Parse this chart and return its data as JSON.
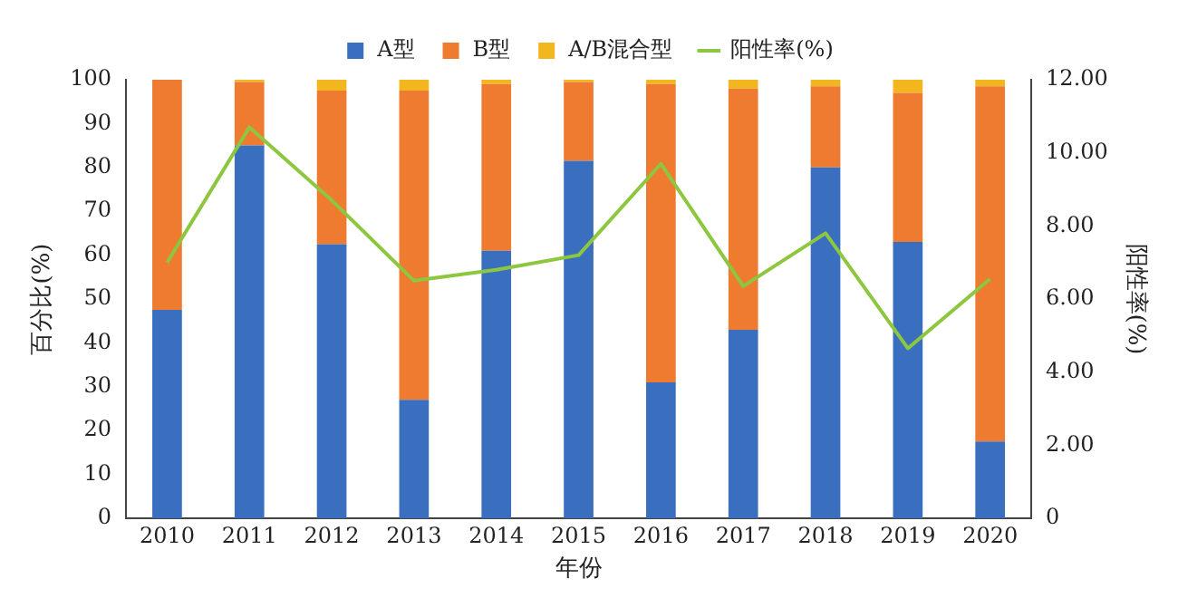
{
  "chart_data": {
    "type": "bar",
    "stacked": true,
    "xlabel": "年份",
    "ylabel": "百分比(%)",
    "y2label": "阳性率(%)",
    "categories": [
      "2010",
      "2011",
      "2012",
      "2013",
      "2014",
      "2015",
      "2016",
      "2017",
      "2018",
      "2019",
      "2020"
    ],
    "series": [
      {
        "name": "A型",
        "color": "#3a6fbf",
        "values": [
          47.5,
          85,
          62.5,
          27,
          61,
          81.5,
          31,
          43,
          80,
          63,
          17.5
        ]
      },
      {
        "name": "B型",
        "color": "#ee7b30",
        "values": [
          52.5,
          14.5,
          35,
          70.5,
          38,
          18,
          68,
          55,
          18.5,
          34,
          81
        ]
      },
      {
        "name": "A/B混合型",
        "color": "#f2b61f",
        "values": [
          0,
          0.5,
          2.5,
          2.5,
          1,
          0.5,
          1,
          2,
          1.5,
          3,
          1.5
        ]
      },
      {
        "name": "阳性率(%)",
        "type": "line",
        "axis": "y2",
        "color": "#8dc63f",
        "marker": "none",
        "values": [
          7.0,
          10.7,
          8.7,
          6.5,
          6.8,
          7.2,
          9.7,
          6.35,
          7.8,
          4.65,
          6.55
        ]
      }
    ],
    "ylim": [
      0,
      100
    ],
    "yticks": [
      0,
      10,
      20,
      30,
      40,
      50,
      60,
      70,
      80,
      90,
      100
    ],
    "y2lim": [
      0,
      12
    ],
    "y2ticks": [
      0,
      {
        "value": 2,
        "label": "2.00"
      },
      {
        "value": 4,
        "label": "4.00"
      },
      {
        "value": 6,
        "label": "6.00"
      },
      {
        "value": 8,
        "label": "8.00"
      },
      {
        "value": 10,
        "label": "10.00"
      },
      {
        "value": 12,
        "label": "12.00"
      }
    ],
    "grid": false,
    "legend": "top"
  }
}
